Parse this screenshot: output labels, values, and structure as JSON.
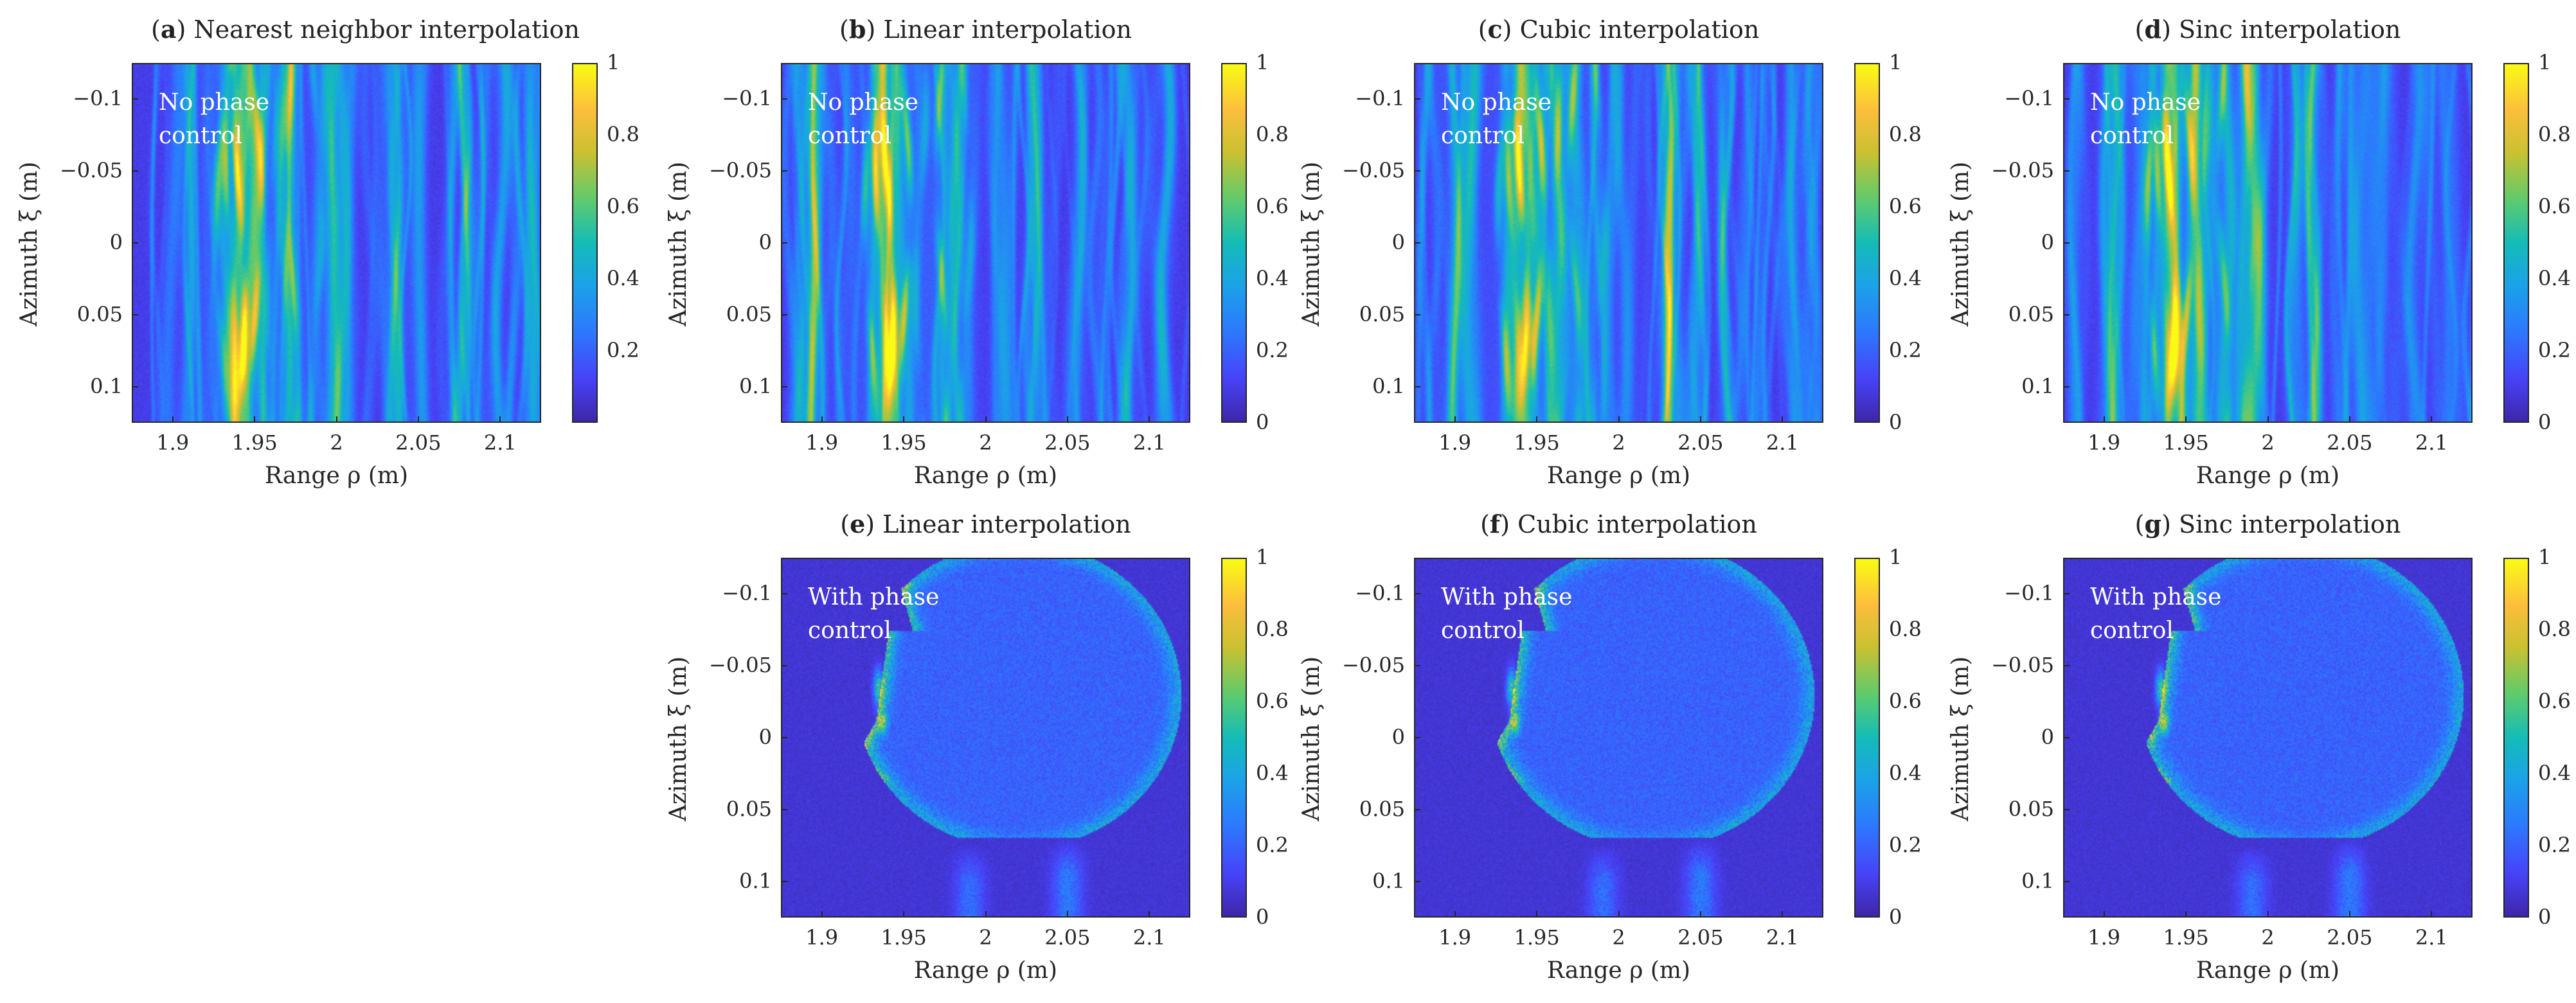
{
  "figure": {
    "panels": [
      {
        "id": "a",
        "letter": "a",
        "title": "Nearest neighbor interpolation",
        "annotation_line1": "No phase",
        "annotation_line2": "control",
        "kind": "stripes",
        "seed": 11
      },
      {
        "id": "b",
        "letter": "b",
        "title": "Linear interpolation",
        "annotation_line1": "No phase",
        "annotation_line2": "control",
        "kind": "stripes",
        "seed": 23
      },
      {
        "id": "c",
        "letter": "c",
        "title": "Cubic interpolation",
        "annotation_line1": "No phase",
        "annotation_line2": "control",
        "kind": "stripes",
        "seed": 37
      },
      {
        "id": "d",
        "letter": "d",
        "title": "Sinc interpolation",
        "annotation_line1": "No phase",
        "annotation_line2": "control",
        "kind": "stripes",
        "seed": 41
      },
      {
        "id": "e",
        "letter": "e",
        "title": "Linear interpolation",
        "annotation_line1": "With phase",
        "annotation_line2": "control",
        "kind": "profile",
        "seed": 53
      },
      {
        "id": "f",
        "letter": "f",
        "title": "Cubic interpolation",
        "annotation_line1": "With phase",
        "annotation_line2": "control",
        "kind": "profile",
        "seed": 67
      },
      {
        "id": "g",
        "letter": "g",
        "title": "Sinc interpolation",
        "annotation_line1": "With phase",
        "annotation_line2": "control",
        "kind": "profile",
        "seed": 79
      }
    ],
    "xlabel": "Range ρ (m)",
    "ylabel": "Azimuth ξ (m)",
    "xticks": [
      "1.9",
      "1.95",
      "2",
      "2.05",
      "2.1"
    ],
    "yticks": [
      "−0.1",
      "−0.05",
      "0",
      "0.05",
      "0.1"
    ],
    "cbar_ticks_with_zero": [
      "0",
      "0.2",
      "0.4",
      "0.6",
      "0.8",
      "1"
    ],
    "cbar_ticks_no_zero": [
      "0.2",
      "0.4",
      "0.6",
      "0.8",
      "1"
    ]
  },
  "chart_data": {
    "type": "heatmap",
    "colormap": "parula",
    "xlim": [
      1.875,
      2.125
    ],
    "ylim": [
      -0.125,
      0.125
    ],
    "x_tick_values": [
      1.9,
      1.95,
      2.0,
      2.05,
      2.1
    ],
    "y_tick_values": [
      -0.1,
      -0.05,
      0,
      0.05,
      0.1
    ],
    "clim": [
      0,
      1
    ],
    "panels": [
      {
        "id": "a",
        "title": "(a) Nearest neighbor interpolation",
        "note": "No phase control",
        "dominant_streaks_range_m": [
          1.93,
          1.965
        ]
      },
      {
        "id": "b",
        "title": "(b) Linear interpolation",
        "note": "No phase control",
        "dominant_streaks_range_m": [
          1.93,
          1.96
        ]
      },
      {
        "id": "c",
        "title": "(c) Cubic interpolation",
        "note": "No phase control",
        "dominant_streaks_range_m": [
          1.93,
          1.96
        ]
      },
      {
        "id": "d",
        "title": "(d) Sinc interpolation",
        "note": "No phase control",
        "dominant_streaks_range_m": [
          1.93,
          1.96
        ]
      },
      {
        "id": "e",
        "title": "(e) Linear interpolation",
        "note": "With phase control",
        "peak_range_m": 1.933,
        "peak_azimuth_m": -0.02
      },
      {
        "id": "f",
        "title": "(f) Cubic interpolation",
        "note": "With phase control",
        "peak_range_m": 1.933,
        "peak_azimuth_m": -0.02
      },
      {
        "id": "g",
        "title": "(g) Sinc interpolation",
        "note": "With phase control",
        "peak_range_m": 1.933,
        "peak_azimuth_m": -0.02
      }
    ]
  }
}
